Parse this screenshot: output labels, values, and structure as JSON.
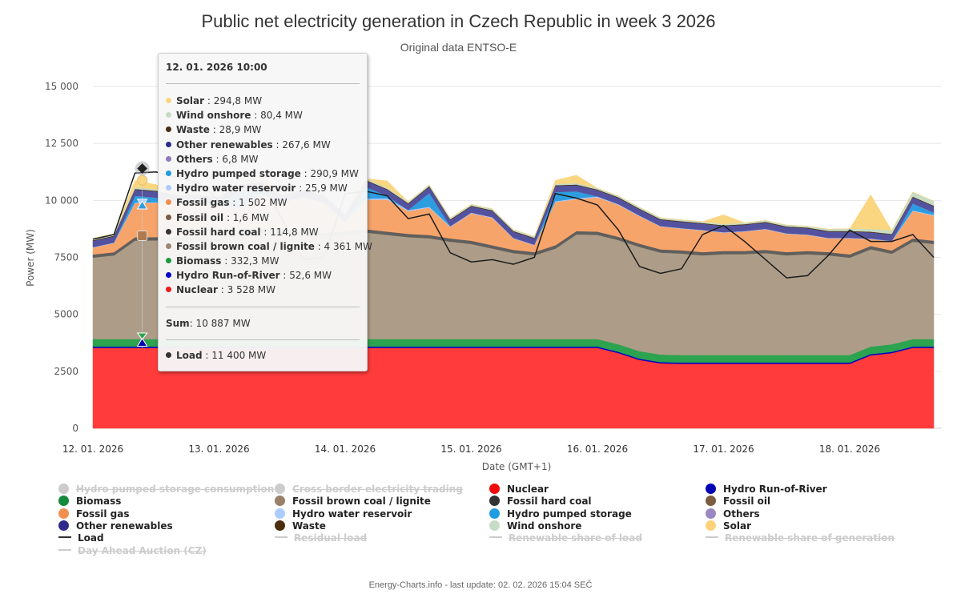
{
  "chart_data": {
    "type": "area",
    "title": "Public net electricity generation in Czech Republic in week 3 2026",
    "subtitle": "Original data ENTSO-E",
    "xlabel": "Date (GMT+1)",
    "ylabel": "Power (MW)",
    "ylim": [
      0,
      15000
    ],
    "yticks": [
      0,
      2500,
      5000,
      7500,
      10000,
      12500,
      15000
    ],
    "ytick_labels": [
      "0",
      "2500",
      "5000",
      "7500",
      "10 000",
      "12 500",
      "15 000"
    ],
    "xtick_labels": [
      "12. 01. 2026",
      "13. 01. 2026",
      "14. 01. 2026",
      "15. 01. 2026",
      "16. 01. 2026",
      "17. 01. 2026",
      "18. 01. 2026"
    ],
    "x_start": "12. 01. 2026 00:00",
    "x_step_hours": 4,
    "x_points": 41,
    "grid": true,
    "legend_position": "bottom",
    "stack_order": [
      "Nuclear",
      "Hydro Run-of-River",
      "Biomass",
      "Fossil brown coal / lignite",
      "Fossil hard coal",
      "Fossil oil",
      "Fossil gas",
      "Hydro water reservoir",
      "Hydro pumped storage",
      "Others",
      "Other renewables",
      "Waste",
      "Wind onshore",
      "Solar"
    ],
    "series": [
      {
        "name": "Nuclear",
        "color": "#ff3b3b",
        "values": [
          3530,
          3530,
          3530,
          3530,
          3530,
          3530,
          3530,
          3530,
          3530,
          3530,
          3530,
          3530,
          3530,
          3530,
          3530,
          3530,
          3530,
          3530,
          3530,
          3530,
          3530,
          3530,
          3530,
          3530,
          3530,
          3300,
          3000,
          2850,
          2830,
          2830,
          2830,
          2830,
          2830,
          2830,
          2830,
          2830,
          2830,
          3200,
          3300,
          3530,
          3530
        ]
      },
      {
        "name": "Hydro Run-of-River",
        "color": "#0000c8",
        "values": [
          55,
          55,
          55,
          55,
          55,
          55,
          55,
          55,
          55,
          55,
          55,
          55,
          55,
          55,
          55,
          55,
          55,
          55,
          55,
          55,
          55,
          55,
          55,
          55,
          55,
          55,
          55,
          55,
          55,
          55,
          55,
          55,
          55,
          55,
          55,
          55,
          55,
          55,
          55,
          55,
          55
        ]
      },
      {
        "name": "Biomass",
        "color": "#2ca34f",
        "values": [
          330,
          330,
          330,
          330,
          330,
          330,
          330,
          330,
          330,
          330,
          330,
          330,
          330,
          330,
          330,
          330,
          330,
          330,
          330,
          330,
          330,
          330,
          330,
          330,
          330,
          330,
          330,
          330,
          330,
          330,
          330,
          330,
          330,
          330,
          330,
          330,
          330,
          330,
          330,
          330,
          330
        ]
      },
      {
        "name": "Fossil brown coal / lignite",
        "color": "#ad9d88",
        "values": [
          3600,
          3700,
          4350,
          4360,
          4360,
          4380,
          4300,
          4600,
          4720,
          4650,
          4600,
          4540,
          4600,
          4700,
          4600,
          4500,
          4450,
          4300,
          4200,
          4000,
          3800,
          3700,
          4000,
          4620,
          4600,
          4600,
          4600,
          4500,
          4480,
          4400,
          4450,
          4450,
          4500,
          4400,
          4450,
          4400,
          4300,
          4300,
          4000,
          4300,
          4200
        ]
      },
      {
        "name": "Fossil hard coal",
        "color": "#5f5f5f",
        "values": [
          110,
          110,
          115,
          115,
          115,
          115,
          115,
          115,
          115,
          115,
          115,
          115,
          115,
          115,
          115,
          115,
          115,
          115,
          115,
          115,
          115,
          115,
          115,
          115,
          115,
          115,
          115,
          115,
          115,
          115,
          115,
          115,
          115,
          115,
          115,
          115,
          115,
          115,
          115,
          115,
          115
        ]
      },
      {
        "name": "Fossil oil",
        "color": "#7a5c43",
        "values": [
          2,
          2,
          2,
          2,
          2,
          2,
          2,
          2,
          2,
          2,
          2,
          2,
          2,
          2,
          2,
          2,
          2,
          2,
          2,
          2,
          2,
          2,
          2,
          2,
          2,
          2,
          2,
          2,
          2,
          2,
          2,
          2,
          2,
          2,
          2,
          2,
          2,
          2,
          2,
          2,
          2
        ]
      },
      {
        "name": "Fossil gas",
        "color": "#f7a46b",
        "values": [
          300,
          400,
          1500,
          1500,
          1500,
          1500,
          1400,
          1000,
          1500,
          1200,
          1500,
          1300,
          400,
          1300,
          1400,
          1000,
          1200,
          500,
          1200,
          1200,
          500,
          300,
          1900,
          1400,
          1500,
          1400,
          1200,
          1000,
          950,
          950,
          800,
          850,
          900,
          800,
          700,
          600,
          700,
          300,
          400,
          1200,
          1100
        ]
      },
      {
        "name": "Hydro water reservoir",
        "color": "#aecbff",
        "values": [
          20,
          20,
          26,
          26,
          26,
          26,
          50,
          60,
          50,
          30,
          30,
          40,
          30,
          50,
          60,
          40,
          40,
          30,
          30,
          30,
          20,
          20,
          30,
          40,
          40,
          30,
          30,
          20,
          20,
          20,
          20,
          20,
          20,
          20,
          20,
          20,
          20,
          20,
          20,
          30,
          30
        ]
      },
      {
        "name": "Hydro pumped storage",
        "color": "#2d9de0",
        "values": [
          0,
          0,
          291,
          200,
          0,
          0,
          50,
          700,
          200,
          0,
          0,
          0,
          0,
          500,
          100,
          0,
          600,
          0,
          0,
          0,
          0,
          0,
          400,
          300,
          0,
          0,
          0,
          0,
          0,
          0,
          0,
          0,
          0,
          0,
          0,
          0,
          0,
          0,
          0,
          300,
          100
        ]
      },
      {
        "name": "Others",
        "color": "#8f7bbd",
        "values": [
          7,
          7,
          7,
          7,
          7,
          7,
          7,
          7,
          7,
          7,
          7,
          7,
          7,
          7,
          7,
          7,
          7,
          7,
          7,
          7,
          7,
          7,
          7,
          7,
          7,
          7,
          7,
          7,
          7,
          7,
          7,
          7,
          7,
          7,
          7,
          7,
          7,
          7,
          7,
          7,
          7
        ]
      },
      {
        "name": "Other renewables",
        "color": "#54529e",
        "values": [
          270,
          270,
          268,
          270,
          270,
          270,
          270,
          270,
          270,
          270,
          270,
          270,
          270,
          270,
          270,
          270,
          270,
          270,
          270,
          270,
          270,
          270,
          270,
          270,
          270,
          270,
          270,
          270,
          270,
          270,
          270,
          270,
          270,
          270,
          270,
          270,
          270,
          270,
          270,
          270,
          270
        ]
      },
      {
        "name": "Waste",
        "color": "#4a2e14",
        "values": [
          29,
          29,
          29,
          29,
          29,
          29,
          29,
          29,
          29,
          29,
          29,
          29,
          29,
          29,
          29,
          29,
          29,
          29,
          29,
          29,
          29,
          29,
          29,
          29,
          29,
          29,
          29,
          29,
          29,
          29,
          29,
          29,
          29,
          29,
          29,
          29,
          29,
          29,
          29,
          29,
          29
        ]
      },
      {
        "name": "Wind onshore",
        "color": "#c7dcc4",
        "values": [
          80,
          80,
          80,
          70,
          60,
          60,
          60,
          60,
          60,
          60,
          60,
          60,
          60,
          60,
          60,
          60,
          60,
          60,
          60,
          60,
          60,
          60,
          60,
          60,
          60,
          60,
          60,
          60,
          60,
          60,
          60,
          60,
          60,
          60,
          60,
          80,
          100,
          120,
          150,
          200,
          200
        ]
      },
      {
        "name": "Solar",
        "color": "#fbd680",
        "values": [
          0,
          0,
          295,
          200,
          0,
          0,
          0,
          0,
          250,
          0,
          0,
          0,
          0,
          0,
          300,
          0,
          0,
          0,
          0,
          0,
          0,
          0,
          150,
          350,
          0,
          0,
          0,
          0,
          0,
          0,
          400,
          0,
          0,
          0,
          0,
          0,
          0,
          1500,
          0,
          0,
          0
        ]
      },
      {
        "name": "Load",
        "type": "line",
        "color": "#1c1c1c",
        "values": [
          8300,
          8500,
          11200,
          11250,
          11000,
          10800,
          10000,
          9700,
          10800,
          9200,
          7400,
          7500,
          10300,
          10400,
          10200,
          9200,
          9400,
          7700,
          7300,
          7400,
          7200,
          7500,
          10300,
          10100,
          9800,
          8700,
          7100,
          6800,
          7000,
          8500,
          8900,
          8200,
          7400,
          6600,
          6700,
          7600,
          8700,
          8200,
          8200,
          8500,
          7500
        ]
      }
    ],
    "tooltip": {
      "header": "12. 01. 2026 10:00",
      "rows": [
        {
          "name": "Solar",
          "value": "294,8 MW",
          "color": "#fbd680"
        },
        {
          "name": "Wind onshore",
          "value": "80,4 MW",
          "color": "#c7dcc4"
        },
        {
          "name": "Waste",
          "value": "28,9 MW",
          "color": "#4a2e14"
        },
        {
          "name": "Other renewables",
          "value": "267,6 MW",
          "color": "#2e2a8c"
        },
        {
          "name": "Others",
          "value": "6,8 MW",
          "color": "#8f7bbd"
        },
        {
          "name": "Hydro pumped storage",
          "value": "290,9 MW",
          "color": "#1f9ce0"
        },
        {
          "name": "Hydro water reservoir",
          "value": "25,9 MW",
          "color": "#aecbff"
        },
        {
          "name": "Fossil gas",
          "value": "1 502 MW",
          "color": "#f28e4a"
        },
        {
          "name": "Fossil oil",
          "value": "1,6 MW",
          "color": "#7a5c43"
        },
        {
          "name": "Fossil hard coal",
          "value": "114,8 MW",
          "color": "#333333"
        },
        {
          "name": "Fossil brown coal / lignite",
          "value": "4 361 MW",
          "color": "#9a8670"
        },
        {
          "name": "Biomass",
          "value": "332,3 MW",
          "color": "#1b9a3c"
        },
        {
          "name": "Hydro Run-of-River",
          "value": "52,6 MW",
          "color": "#0000c8"
        },
        {
          "name": "Nuclear",
          "value": "3 528 MW",
          "color": "#ef1a1a"
        }
      ],
      "sum_label": "Sum",
      "sum_value": ": 10 887 MW",
      "load_label": "Load",
      "load_value": " : 11 400 MW",
      "load_color": "#333333"
    },
    "legend": [
      {
        "name": "Hydro pumped storage consumption",
        "marker": "dot",
        "color": "#cccccc",
        "hidden": true
      },
      {
        "name": "Cross border electricity trading",
        "marker": "dot",
        "color": "#cccccc",
        "hidden": true
      },
      {
        "name": "Nuclear",
        "marker": "dot",
        "color": "#f00a0a",
        "hidden": false
      },
      {
        "name": "Hydro Run-of-River",
        "marker": "dot",
        "color": "#0000b4",
        "hidden": false
      },
      {
        "name": "Biomass",
        "marker": "dot",
        "color": "#138a3c",
        "hidden": false
      },
      {
        "name": "Fossil brown coal / lignite",
        "marker": "dot",
        "color": "#9a8068",
        "hidden": false
      },
      {
        "name": "Fossil hard coal",
        "marker": "dot",
        "color": "#333333",
        "hidden": false
      },
      {
        "name": "Fossil oil",
        "marker": "dot",
        "color": "#7a5c43",
        "hidden": false
      },
      {
        "name": "Fossil gas",
        "marker": "dot",
        "color": "#f29050",
        "hidden": false
      },
      {
        "name": "Hydro water reservoir",
        "marker": "dot",
        "color": "#aecbff",
        "hidden": false
      },
      {
        "name": "Hydro pumped storage",
        "marker": "dot",
        "color": "#1f9ce0",
        "hidden": false
      },
      {
        "name": "Others",
        "marker": "dot",
        "color": "#9a86c0",
        "hidden": false
      },
      {
        "name": "Other renewables",
        "marker": "dot",
        "color": "#2e2a8c",
        "hidden": false
      },
      {
        "name": "Waste",
        "marker": "dot",
        "color": "#4a2e0c",
        "hidden": false
      },
      {
        "name": "Wind onshore",
        "marker": "dot",
        "color": "#c7dcc4",
        "hidden": false
      },
      {
        "name": "Solar",
        "marker": "dot",
        "color": "#fcd37a",
        "hidden": false
      },
      {
        "name": "Load",
        "marker": "line",
        "color": "#333333",
        "hidden": false
      },
      {
        "name": "Residual load",
        "marker": "line",
        "color": "#cccccc",
        "hidden": true
      },
      {
        "name": "Renewable share of load",
        "marker": "line",
        "color": "#cccccc",
        "hidden": true
      },
      {
        "name": "Renewable share of generation",
        "marker": "line",
        "color": "#cccccc",
        "hidden": true
      },
      {
        "name": "Day Ahead Auction (CZ)",
        "marker": "line",
        "color": "#cccccc",
        "hidden": true
      }
    ]
  },
  "footer": "Energy-Charts.info - last update: 02. 02. 2026 15:04 SEČ"
}
